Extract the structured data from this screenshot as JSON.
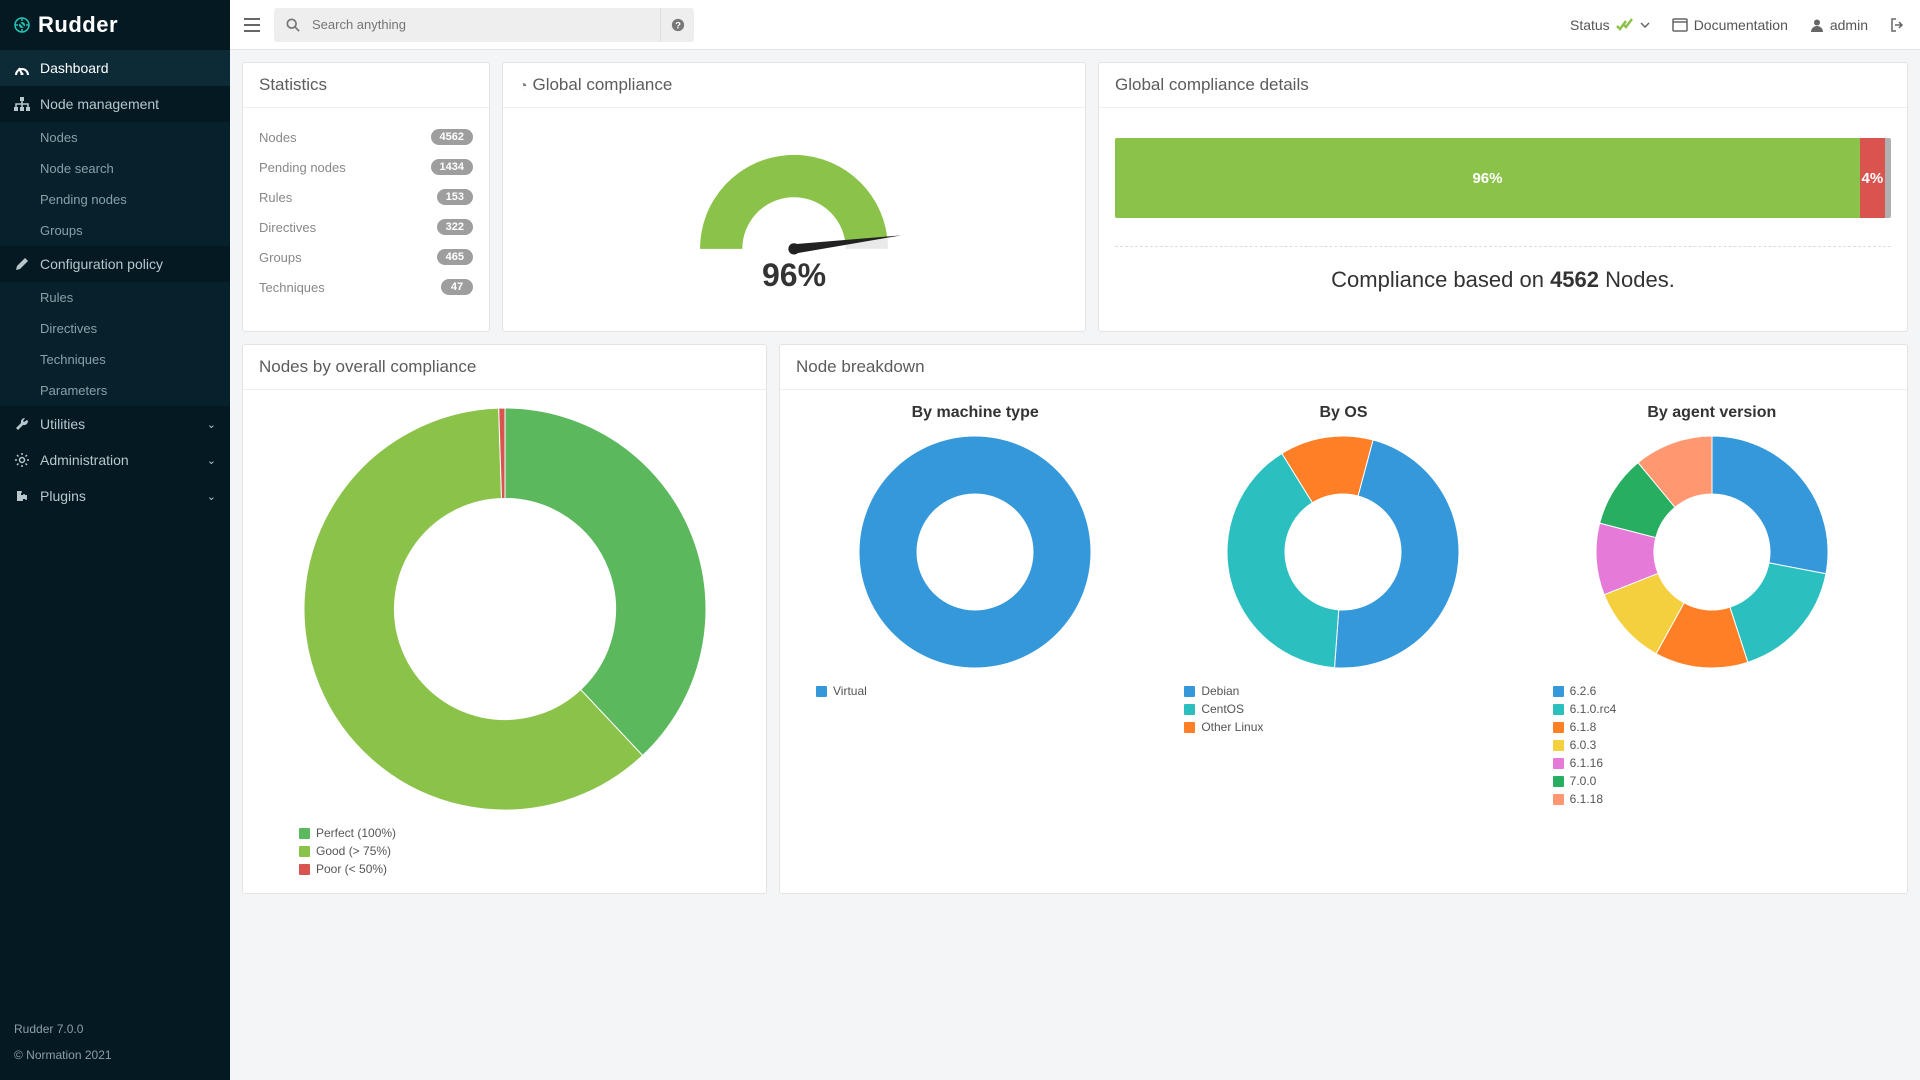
{
  "app": {
    "name": "Rudder",
    "version": "Rudder 7.0.0",
    "copyright": "© Normation 2021"
  },
  "sidebar": {
    "items": [
      {
        "label": "Dashboard",
        "icon": "dashboard-icon",
        "active": true,
        "sub": []
      },
      {
        "label": "Node management",
        "icon": "sitemap-icon",
        "active": false,
        "sub": [
          {
            "label": "Nodes"
          },
          {
            "label": "Node search"
          },
          {
            "label": "Pending nodes"
          },
          {
            "label": "Groups"
          }
        ]
      },
      {
        "label": "Configuration policy",
        "icon": "pencil-icon",
        "active": false,
        "sub": [
          {
            "label": "Rules"
          },
          {
            "label": "Directives"
          },
          {
            "label": "Techniques"
          },
          {
            "label": "Parameters"
          }
        ]
      },
      {
        "label": "Utilities",
        "icon": "wrench-icon",
        "chevron": true,
        "sub": []
      },
      {
        "label": "Administration",
        "icon": "gear-icon",
        "chevron": true,
        "sub": []
      },
      {
        "label": "Plugins",
        "icon": "puzzle-icon",
        "chevron": true,
        "sub": []
      }
    ]
  },
  "topbar": {
    "search_placeholder": "Search anything",
    "status_label": "Status",
    "doc_label": "Documentation",
    "user_label": "admin"
  },
  "statistics": {
    "title": "Statistics",
    "rows": [
      {
        "label": "Nodes",
        "value": "4562"
      },
      {
        "label": "Pending nodes",
        "value": "1434"
      },
      {
        "label": "Rules",
        "value": "153"
      },
      {
        "label": "Directives",
        "value": "322"
      },
      {
        "label": "Groups",
        "value": "465"
      },
      {
        "label": "Techniques",
        "value": "47"
      }
    ]
  },
  "global_compliance": {
    "title": "Global compliance",
    "value": 96,
    "value_text": "96%",
    "gauge": {
      "good_color": "#8bc34a",
      "empty_color": "#e9e9e9",
      "needle_color": "#222"
    }
  },
  "compliance_details": {
    "title": "Global compliance details",
    "segments": [
      {
        "pct": 96,
        "label": "96%",
        "color": "#8bc34a"
      },
      {
        "pct": 3.2,
        "label": "4%",
        "color": "#d9534f"
      },
      {
        "pct": 0.8,
        "label": "",
        "color": "#b0b0b0"
      }
    ],
    "text_prefix": "Compliance based on ",
    "text_count": "4562",
    "text_suffix": " Nodes."
  },
  "nodes_compliance": {
    "title": "Nodes by overall compliance",
    "donut": {
      "type": "donut",
      "inner_ratio": 0.55,
      "size": 410,
      "slices": [
        {
          "label": "Perfect (100%)",
          "value": 38,
          "color": "#5cb85c"
        },
        {
          "label": "Good (> 75%)",
          "value": 61.5,
          "color": "#8bc34a"
        },
        {
          "label": "Poor (< 50%)",
          "value": 0.5,
          "color": "#d9534f"
        }
      ],
      "start_angle": -90
    }
  },
  "breakdown": {
    "title": "Node breakdown",
    "charts": [
      {
        "title": "By machine type",
        "size": 240,
        "inner_ratio": 0.5,
        "start_angle": -90,
        "slices": [
          {
            "label": "Virtual",
            "value": 100,
            "color": "#3498db"
          }
        ]
      },
      {
        "title": "By OS",
        "size": 240,
        "inner_ratio": 0.5,
        "start_angle": -75,
        "slices": [
          {
            "label": "Debian",
            "value": 47,
            "color": "#3498db"
          },
          {
            "label": "CentOS",
            "value": 40,
            "color": "#2bc0bf"
          },
          {
            "label": "Other Linux",
            "value": 13,
            "color": "#ff7f27"
          }
        ]
      },
      {
        "title": "By agent version",
        "size": 240,
        "inner_ratio": 0.5,
        "start_angle": -90,
        "slices": [
          {
            "label": "6.2.6",
            "value": 28,
            "color": "#3498db"
          },
          {
            "label": "6.1.0.rc4",
            "value": 17,
            "color": "#2bc0bf"
          },
          {
            "label": "6.1.8",
            "value": 13,
            "color": "#ff7f27"
          },
          {
            "label": "6.0.3",
            "value": 11,
            "color": "#f4d03f"
          },
          {
            "label": "6.1.16",
            "value": 10,
            "color": "#e57ad8"
          },
          {
            "label": "7.0.0",
            "value": 10,
            "color": "#27ae60"
          },
          {
            "label": "6.1.18",
            "value": 11,
            "color": "#ff9770"
          }
        ]
      }
    ]
  },
  "colors": {
    "sidebar_bg": "#041922",
    "sidebar_active_bg": "#0d2b36",
    "panel_border": "#e3e3e3",
    "badge_bg": "#9e9e9e"
  }
}
